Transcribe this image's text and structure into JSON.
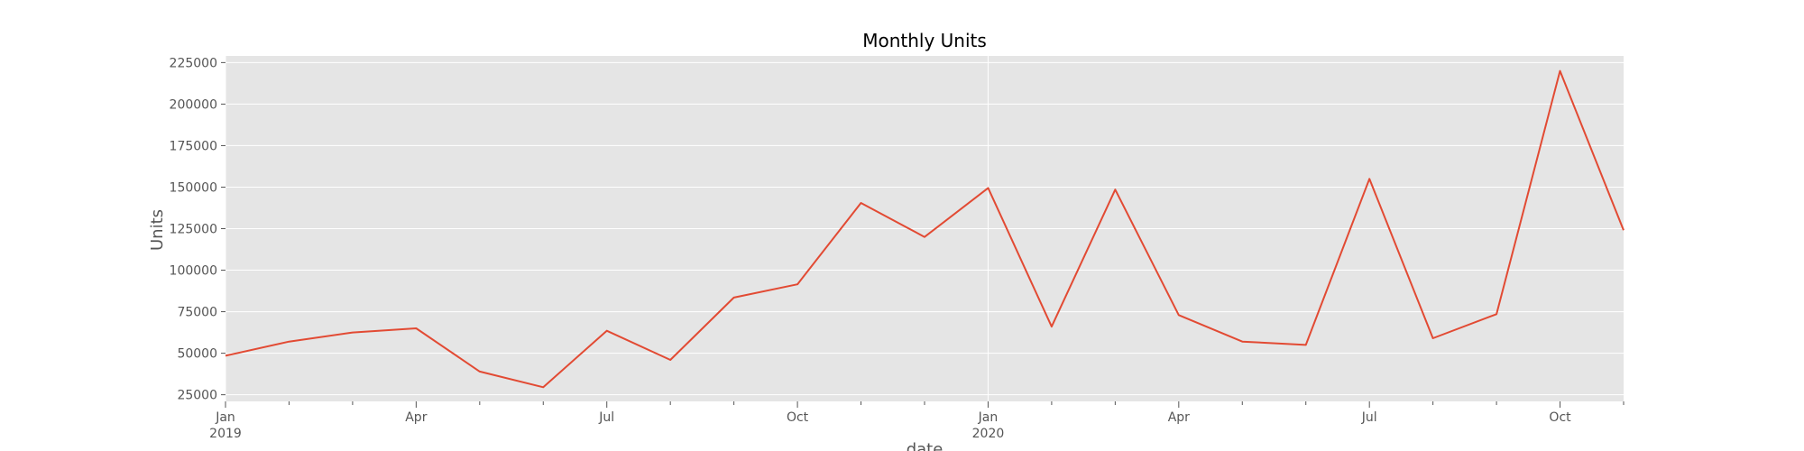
{
  "chart_data": {
    "type": "line",
    "title": "Monthly Units",
    "xlabel": "date",
    "ylabel": "Units",
    "x": [
      "2019-01",
      "2019-02",
      "2019-03",
      "2019-04",
      "2019-05",
      "2019-06",
      "2019-07",
      "2019-08",
      "2019-09",
      "2019-10",
      "2019-11",
      "2019-12",
      "2020-01",
      "2020-02",
      "2020-03",
      "2020-04",
      "2020-05",
      "2020-06",
      "2020-07",
      "2020-08",
      "2020-09",
      "2020-10",
      "2020-11"
    ],
    "series": [
      {
        "values": [
          48500,
          57000,
          62500,
          65000,
          39000,
          29500,
          63500,
          46000,
          83500,
          91500,
          140500,
          120000,
          149500,
          66000,
          148500,
          73000,
          57000,
          55000,
          155000,
          59000,
          73500,
          220000,
          124000
        ]
      }
    ],
    "ylim": [
      21000,
      229000
    ],
    "yticks": [
      "25000",
      "50000",
      "75000",
      "100000",
      "125000",
      "150000",
      "175000",
      "200000",
      "225000"
    ],
    "xticks": [
      {
        "month": "2019-01",
        "label": "Jan",
        "year": "2019"
      },
      {
        "month": "2019-04",
        "label": "Apr",
        "year": ""
      },
      {
        "month": "2019-07",
        "label": "Jul",
        "year": ""
      },
      {
        "month": "2019-10",
        "label": "Oct",
        "year": ""
      },
      {
        "month": "2020-01",
        "label": "Jan",
        "year": "2020"
      },
      {
        "month": "2020-04",
        "label": "Apr",
        "year": ""
      },
      {
        "month": "2020-07",
        "label": "Jul",
        "year": ""
      },
      {
        "month": "2020-10",
        "label": "Oct",
        "year": ""
      }
    ],
    "grid": true,
    "colors": {
      "line": "#E24A33",
      "plot_bg": "#E5E5E5",
      "grid": "#FFFFFF",
      "text": "#555555"
    }
  }
}
